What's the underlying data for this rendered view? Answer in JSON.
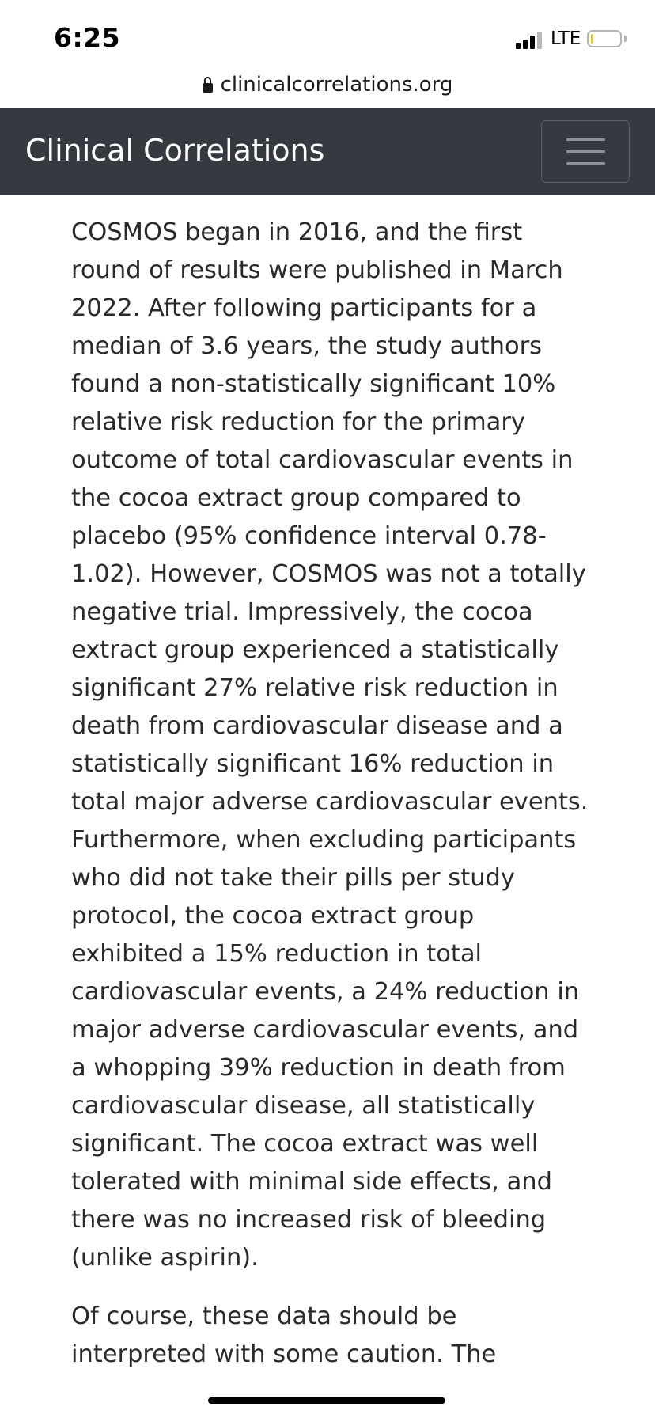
{
  "status_bar": {
    "time": "6:25",
    "network": "LTE",
    "signal_bars_active": 3,
    "signal_bars_total": 4,
    "battery_level": 0.1,
    "battery_color": "#f6c21a"
  },
  "browser": {
    "url": "clinicalcorrelations.org",
    "url_icon": "lock-icon"
  },
  "navbar": {
    "brand": "Clinical Correlations",
    "background": "#343a40",
    "menu_icon": "hamburger-menu-icon"
  },
  "article": {
    "paragraphs": [
      "COSMOS began in 2016, and the first round of results were published in March 2022. After following participants for a median of 3.6 years, the study authors found a non-statistically significant 10% relative risk reduction for the primary outcome of total cardiovascular events in the cocoa extract group compared to placebo (95% confidence interval 0.78-1.02). However, COSMOS was not a totally negative trial. Impressively, the cocoa extract group experienced a statistically significant 27% relative risk reduction in death from cardiovascular disease and a statistically significant 16% reduction in total major adverse cardiovascular events. Furthermore, when excluding participants who did not take their pills per study protocol, the cocoa extract group exhibited a 15% reduction in total cardiovascular events, a 24% reduction in major adverse cardiovascular events, and a whopping 39% reduction in death from cardiovascular disease, all statistically significant. The cocoa extract was well tolerated with minimal side effects, and there was no increased risk of bleeding (unlike aspirin).",
      "Of course, these data should be interpreted with some caution. The"
    ]
  }
}
